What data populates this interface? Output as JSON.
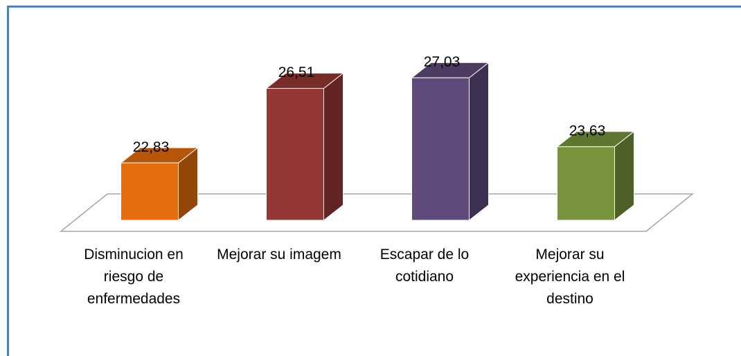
{
  "chart_data": {
    "type": "bar3d",
    "categories": [
      "Disminucion en riesgo de enfermedades",
      "Mejorar su imagem",
      "Escapar de lo cotidiano",
      "Mejorar su experiencia en el destino"
    ],
    "values": [
      22.83,
      26.51,
      27.03,
      23.63
    ],
    "value_labels": [
      "22,83",
      "26,51",
      "27,03",
      "23,63"
    ],
    "colors": [
      "#e46c0a",
      "#953735",
      "#604a7b",
      "#77933c"
    ],
    "ylim": [
      20,
      28
    ]
  }
}
